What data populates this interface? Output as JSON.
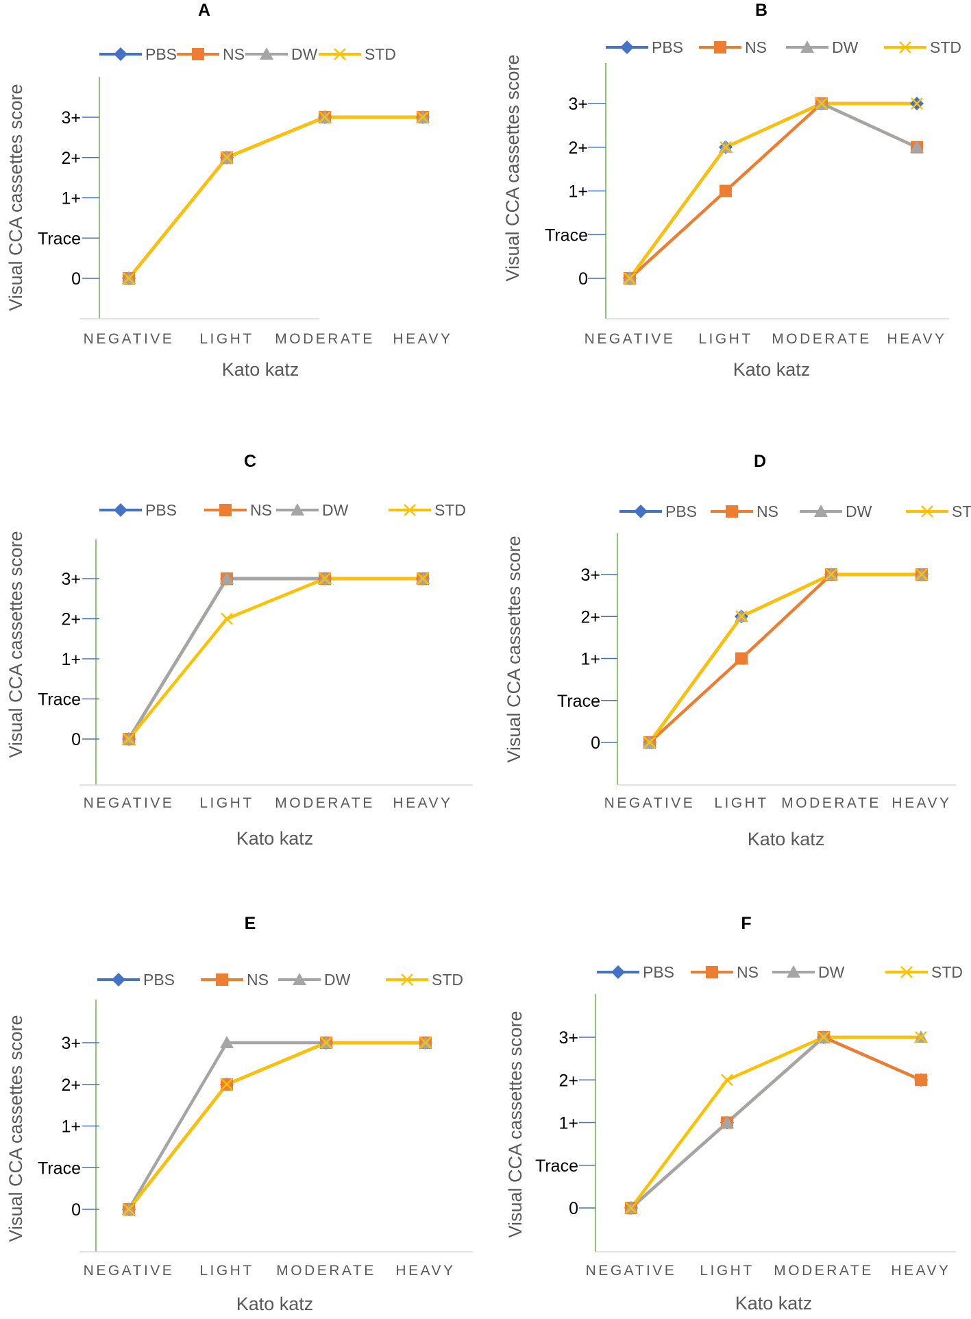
{
  "figure": {
    "description_hidden": false
  },
  "legend_labels": [
    "PBS",
    "NS",
    "DW",
    "STD"
  ],
  "colors": {
    "PBS": "#4472C4",
    "NS": "#ED7D31",
    "DW": "#A5A5A5",
    "STD": "#FFC000",
    "y_axis": "#70AD47",
    "tick": "#4472C4"
  },
  "chart_data": [
    {
      "type": "line",
      "title": "A",
      "categories": [
        "NEGATIVE",
        "LIGHT",
        "MODERATE",
        "HEAVY"
      ],
      "xlabel": "Kato katz",
      "ylabel": "Visual CCA cassettes score",
      "yticks": [
        {
          "value": 0,
          "label": "0"
        },
        {
          "value": 1,
          "label": "Trace"
        },
        {
          "value": 2,
          "label": "1+"
        },
        {
          "value": 3,
          "label": "2+"
        },
        {
          "value": 4,
          "label": "3+"
        }
      ],
      "ylim": [
        -0.8,
        5
      ],
      "series": [
        {
          "name": "PBS",
          "values": [
            0,
            3,
            4,
            4
          ]
        },
        {
          "name": "NS",
          "values": [
            0,
            3,
            4,
            4
          ]
        },
        {
          "name": "DW",
          "values": [
            0,
            3,
            4,
            4
          ]
        },
        {
          "name": "STD",
          "values": [
            0,
            3,
            4,
            4
          ]
        }
      ]
    },
    {
      "type": "line",
      "title": "B",
      "categories": [
        "NEGATIVE",
        "LIGHT",
        "MODERATE",
        "HEAVY"
      ],
      "xlabel": "Kato katz",
      "ylabel": "Visual CCA cassettes score",
      "yticks": [
        {
          "value": 0,
          "label": "0"
        },
        {
          "value": 1,
          "label": "Trace"
        },
        {
          "value": 2,
          "label": "1+"
        },
        {
          "value": 3,
          "label": "2+"
        },
        {
          "value": 4,
          "label": "3+"
        }
      ],
      "ylim": [
        -0.8,
        5
      ],
      "series": [
        {
          "name": "PBS",
          "values": [
            0,
            3,
            4,
            4
          ]
        },
        {
          "name": "NS",
          "values": [
            0,
            2,
            4,
            3
          ]
        },
        {
          "name": "DW",
          "values": [
            0,
            3,
            4,
            3
          ]
        },
        {
          "name": "STD",
          "values": [
            0,
            3,
            4,
            4
          ]
        }
      ]
    },
    {
      "type": "line",
      "title": "C",
      "categories": [
        "NEGATIVE",
        "LIGHT",
        "MODERATE",
        "HEAVY"
      ],
      "xlabel": "Kato katz",
      "ylabel": "Visual CCA cassettes score",
      "yticks": [
        {
          "value": 0,
          "label": "0"
        },
        {
          "value": 1,
          "label": "Trace"
        },
        {
          "value": 2,
          "label": "1+"
        },
        {
          "value": 3,
          "label": "2+"
        },
        {
          "value": 4,
          "label": "3+"
        }
      ],
      "ylim": [
        -0.8,
        5
      ],
      "series": [
        {
          "name": "PBS",
          "values": [
            0,
            4,
            4,
            4
          ]
        },
        {
          "name": "NS",
          "values": [
            0,
            4,
            4,
            4
          ]
        },
        {
          "name": "DW",
          "values": [
            0,
            4,
            4,
            4
          ]
        },
        {
          "name": "STD",
          "values": [
            0,
            3,
            4,
            4
          ]
        }
      ]
    },
    {
      "type": "line",
      "title": "D",
      "categories": [
        "NEGATIVE",
        "LIGHT",
        "MODERATE",
        "HEAVY"
      ],
      "xlabel": "Kato katz",
      "ylabel": "Visual CCA cassettes score",
      "yticks": [
        {
          "value": 0,
          "label": "0"
        },
        {
          "value": 1,
          "label": "Trace"
        },
        {
          "value": 2,
          "label": "1+"
        },
        {
          "value": 3,
          "label": "2+"
        },
        {
          "value": 4,
          "label": "3+"
        }
      ],
      "ylim": [
        -0.8,
        5
      ],
      "series": [
        {
          "name": "PBS",
          "values": [
            0,
            3,
            4,
            4
          ]
        },
        {
          "name": "NS",
          "values": [
            0,
            2,
            4,
            4
          ]
        },
        {
          "name": "DW",
          "values": [
            0,
            3,
            4,
            4
          ]
        },
        {
          "name": "STD",
          "values": [
            0,
            3,
            4,
            4
          ]
        }
      ]
    },
    {
      "type": "line",
      "title": "E",
      "categories": [
        "NEGATIVE",
        "LIGHT",
        "MODERATE",
        "HEAVY"
      ],
      "xlabel": "Kato katz",
      "ylabel": "Visual CCA cassettes score",
      "yticks": [
        {
          "value": 0,
          "label": "0"
        },
        {
          "value": 1,
          "label": "Trace"
        },
        {
          "value": 2,
          "label": "1+"
        },
        {
          "value": 3,
          "label": "2+"
        },
        {
          "value": 4,
          "label": "3+"
        }
      ],
      "ylim": [
        -0.8,
        5
      ],
      "series": [
        {
          "name": "PBS",
          "values": [
            0,
            3,
            4,
            4
          ]
        },
        {
          "name": "NS",
          "values": [
            0,
            3,
            4,
            4
          ]
        },
        {
          "name": "DW",
          "values": [
            0,
            4,
            4,
            4
          ]
        },
        {
          "name": "STD",
          "values": [
            0,
            3,
            4,
            4
          ]
        }
      ]
    },
    {
      "type": "line",
      "title": "F",
      "categories": [
        "NEGATIVE",
        "LIGHT",
        "MODERATE",
        "HEAVY"
      ],
      "xlabel": "Kato katz",
      "ylabel": "Visual CCA cassettes score",
      "yticks": [
        {
          "value": 0,
          "label": "0"
        },
        {
          "value": 1,
          "label": "Trace"
        },
        {
          "value": 2,
          "label": "1+"
        },
        {
          "value": 3,
          "label": "2+"
        },
        {
          "value": 4,
          "label": "3+"
        }
      ],
      "ylim": [
        -0.8,
        5
      ],
      "series": [
        {
          "name": "PBS",
          "values": [
            0,
            2,
            4,
            3
          ]
        },
        {
          "name": "NS",
          "values": [
            0,
            2,
            4,
            3
          ]
        },
        {
          "name": "DW",
          "values": [
            0,
            2,
            4,
            4
          ]
        },
        {
          "name": "STD",
          "values": [
            0,
            3,
            4,
            4
          ]
        }
      ]
    }
  ]
}
